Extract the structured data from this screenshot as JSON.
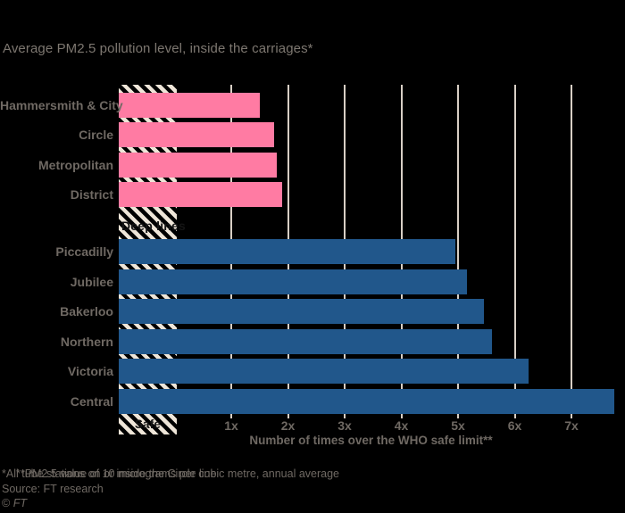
{
  "subtitle": "Average PM2.5 pollution level, inside the carriages*",
  "chart": {
    "deep_group_label": "Deep lines",
    "safe_label": "Safe",
    "axis_title": "Number of times over the WHO safe limit**"
  },
  "footer": {
    "footnote_1": "*All tube stations on or inside the Circle line",
    "footnote_2": "**PM2.5 value of 10 micrograms per cubic metre, annual average",
    "source": "Source: FT research",
    "copyright_symbol": "©",
    "copyright_brand": "FT"
  },
  "colors": {
    "sub_surface_bar": "#ff7ba3",
    "deep_bar": "#21578b",
    "gridline": "#d8cfc5",
    "hatch_stripe": "#eee5d8",
    "muted_text": "#6f6963",
    "subtitle_text": "#7d7770",
    "dark_label": "#141414",
    "background": "#000000"
  },
  "chart_data": {
    "type": "bar",
    "orientation": "horizontal",
    "title": "Average PM2.5 pollution level, inside the carriages*",
    "xlabel": "Number of times over the WHO safe limit**",
    "xlim": [
      -1,
      7.9
    ],
    "bar_base": -1,
    "grid": "vertical",
    "legend": "none",
    "x_ticks": [
      1,
      2,
      3,
      4,
      5,
      6,
      7
    ],
    "x_tick_labels": [
      "1x",
      "2x",
      "3x",
      "4x",
      "5x",
      "6x",
      "7x"
    ],
    "safe_zone": {
      "from": -1,
      "to": 0,
      "label": "Safe",
      "style": "hatched"
    },
    "groups": [
      {
        "label": "",
        "color": "#ff7ba3",
        "categories": [
          "Hammersmith & City",
          "Circle",
          "Metropolitan",
          "District"
        ],
        "values": [
          1.5,
          1.75,
          1.8,
          1.9
        ]
      },
      {
        "label": "Deep lines",
        "color": "#21578b",
        "categories": [
          "Piccadilly",
          "Jubilee",
          "Bakerloo",
          "Northern",
          "Victoria",
          "Central"
        ],
        "values": [
          4.95,
          5.15,
          5.45,
          5.6,
          6.25,
          7.75
        ]
      }
    ]
  }
}
